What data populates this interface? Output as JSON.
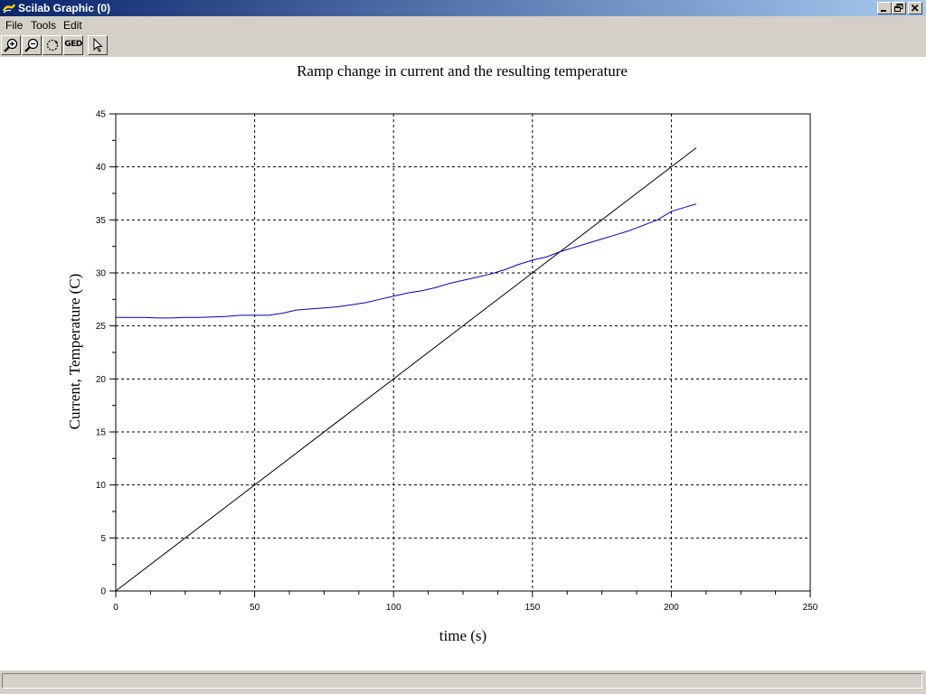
{
  "window": {
    "title": "Scilab Graphic (0)",
    "icon": "scilab-icon",
    "controls": [
      "minimize-icon",
      "restore-icon",
      "close-icon"
    ]
  },
  "menu": {
    "items": [
      {
        "label": "File",
        "accesskey": "F"
      },
      {
        "label": "Tools",
        "accesskey": "T"
      },
      {
        "label": "Edit",
        "accesskey": "E"
      }
    ]
  },
  "toolbar": {
    "buttons": [
      {
        "icon": "zoom-in-icon"
      },
      {
        "icon": "zoom-out-icon"
      },
      {
        "icon": "rotate-icon"
      },
      {
        "icon": "ged-icon",
        "label": "GED"
      },
      {
        "icon": "pointer-icon"
      }
    ]
  },
  "status": {
    "text": ""
  },
  "chart_data": {
    "type": "line",
    "title": "Ramp change in current and the resulting temperature",
    "xlabel": "time (s)",
    "ylabel": "Current, Temperature (C)",
    "xlim": [
      0,
      250
    ],
    "ylim": [
      0,
      45
    ],
    "xticks": [
      0,
      50,
      100,
      150,
      200,
      250
    ],
    "yticks": [
      0,
      5,
      10,
      15,
      20,
      25,
      30,
      35,
      40,
      45
    ],
    "grid": true,
    "legend": "none",
    "series": [
      {
        "color": "#000000",
        "x": [
          0,
          209
        ],
        "y": [
          0,
          41.8
        ]
      },
      {
        "color": "#0000c0",
        "x": [
          0,
          5,
          10,
          15,
          20,
          25,
          30,
          35,
          40,
          45,
          50,
          55,
          60,
          65,
          70,
          75,
          80,
          85,
          90,
          95,
          100,
          105,
          110,
          115,
          120,
          125,
          130,
          135,
          140,
          145,
          150,
          155,
          160,
          165,
          170,
          175,
          180,
          185,
          190,
          195,
          200,
          205,
          209
        ],
        "y": [
          25.8,
          25.8,
          25.8,
          25.75,
          25.75,
          25.8,
          25.8,
          25.85,
          25.9,
          26.0,
          26.0,
          26.0,
          26.2,
          26.5,
          26.6,
          26.7,
          26.8,
          27.0,
          27.2,
          27.5,
          27.8,
          28.1,
          28.3,
          28.6,
          29.0,
          29.3,
          29.6,
          29.9,
          30.3,
          30.8,
          31.2,
          31.5,
          32.0,
          32.4,
          32.8,
          33.2,
          33.6,
          34.0,
          34.5,
          35.0,
          35.8,
          36.2,
          36.5
        ]
      }
    ]
  }
}
